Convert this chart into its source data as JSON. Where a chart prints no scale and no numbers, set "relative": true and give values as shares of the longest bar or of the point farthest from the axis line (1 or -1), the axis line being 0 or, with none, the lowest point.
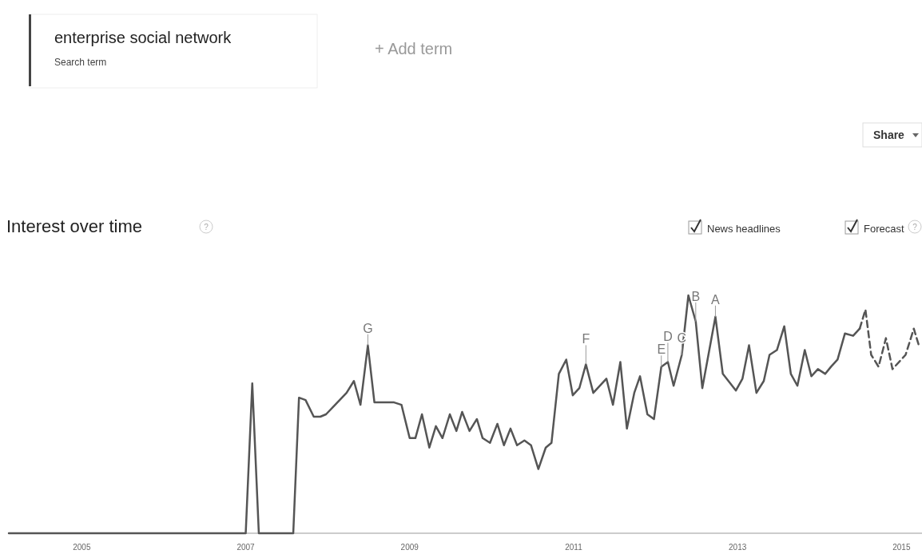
{
  "chart_data": {
    "type": "line",
    "title": "Interest over time",
    "relative": true,
    "xlim": [
      2004.1,
      2015.25
    ],
    "xticks": [
      2005,
      2007,
      2009,
      2011,
      2013,
      2015
    ],
    "series": [
      {
        "color": "#555555",
        "line_style": "solid",
        "x": [
          2004.11,
          2007.0,
          2007.08,
          2007.16,
          2007.58,
          2007.65,
          2007.73,
          2007.83,
          2007.91,
          2007.98,
          2008.23,
          2008.32,
          2008.4,
          2008.49,
          2008.57,
          2008.81,
          2008.9,
          2009.0,
          2009.07,
          2009.15,
          2009.24,
          2009.32,
          2009.4,
          2009.49,
          2009.57,
          2009.64,
          2009.73,
          2009.82,
          2009.89,
          2009.98,
          2010.07,
          2010.15,
          2010.23,
          2010.31,
          2010.4,
          2010.48,
          2010.57,
          2010.66,
          2010.73,
          2010.82,
          2010.91,
          2010.99,
          2011.07,
          2011.15,
          2011.24,
          2011.4,
          2011.48,
          2011.57,
          2011.65,
          2011.74,
          2011.81,
          2011.9,
          2011.98,
          2012.07,
          2012.15,
          2012.22,
          2012.32,
          2012.4,
          2012.49,
          2012.57,
          2012.73,
          2012.82,
          2012.98,
          2013.06,
          2013.14,
          2013.23,
          2013.32,
          2013.39,
          2013.48,
          2013.57,
          2013.65,
          2013.73,
          2013.82,
          2013.9,
          2013.98,
          2014.07,
          2014.14,
          2014.22,
          2014.31,
          2014.41,
          2014.49
        ],
        "values": [
          0,
          0,
          0.63,
          0,
          0,
          0.57,
          0.56,
          0.49,
          0.49,
          0.5,
          0.59,
          0.64,
          0.54,
          0.79,
          0.55,
          0.55,
          0.54,
          0.4,
          0.4,
          0.5,
          0.36,
          0.45,
          0.4,
          0.5,
          0.43,
          0.51,
          0.43,
          0.48,
          0.4,
          0.38,
          0.46,
          0.37,
          0.44,
          0.37,
          0.39,
          0.37,
          0.27,
          0.36,
          0.38,
          0.67,
          0.73,
          0.58,
          0.61,
          0.71,
          0.59,
          0.65,
          0.54,
          0.72,
          0.44,
          0.59,
          0.66,
          0.5,
          0.48,
          0.7,
          0.72,
          0.62,
          0.75,
          1,
          0.89,
          0.61,
          0.91,
          0.67,
          0.6,
          0.65,
          0.79,
          0.59,
          0.64,
          0.75,
          0.77,
          0.87,
          0.67,
          0.62,
          0.77,
          0.66,
          0.69,
          0.67,
          0.7,
          0.73,
          0.84,
          0.83,
          0.86
        ]
      },
      {
        "color": "#555555",
        "line_style": "dashed",
        "x": [
          2014.49,
          2014.56,
          2014.63,
          2014.72,
          2014.81,
          2014.89,
          2015.05,
          2015.15,
          2015.22
        ],
        "values": [
          0.86,
          0.94,
          0.75,
          0.7,
          0.82,
          0.69,
          0.75,
          0.86,
          0.78
        ]
      }
    ],
    "annotations": [
      "enterprise social network",
      "Search term",
      "+ Add term",
      "Share",
      "News headlines",
      "Forecast",
      "?",
      "?",
      {
        "text": "G",
        "x": 2008.49,
        "y": 0.79
      },
      {
        "text": "F",
        "x": 2011.15,
        "y": 0.71
      },
      {
        "text": "E",
        "x": 2012.07,
        "y": 0.7
      },
      {
        "text": "D",
        "x": 2012.15,
        "y": 0.72
      },
      {
        "text": "C",
        "x": 2012.32,
        "y": 0.75
      },
      {
        "text": "B",
        "x": 2012.49,
        "y": 0.89
      },
      {
        "text": "A",
        "x": 2012.73,
        "y": 0.91
      }
    ]
  }
}
